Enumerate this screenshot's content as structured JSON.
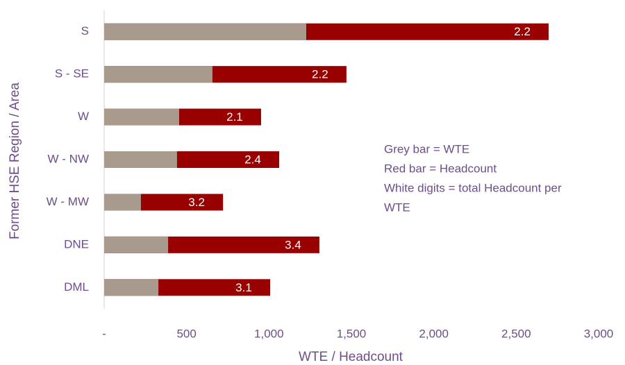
{
  "chart_data": {
    "type": "bar",
    "orientation": "horizontal",
    "overlap": true,
    "categories": [
      "S",
      "S - SE",
      "W",
      "W - NW",
      "W - MW",
      "DNE",
      "DML"
    ],
    "series": [
      {
        "name": "Headcount",
        "color": "#990000",
        "values": [
          2697,
          1470,
          952,
          1062,
          721,
          1306,
          1007
        ]
      },
      {
        "name": "WTE",
        "color": "#a89b8e",
        "values": [
          1226,
          657,
          455,
          442,
          223,
          388,
          329
        ]
      }
    ],
    "headcount_per_wte": [
      2.2,
      2.2,
      2.1,
      2.4,
      3.2,
      3.4,
      3.1
    ],
    "xlim": [
      0,
      3000
    ],
    "xticks": [
      {
        "value": 0,
        "label": "-"
      },
      500,
      {
        "value": 1000,
        "label": "1,000"
      },
      {
        "value": 1500,
        "label": "1,500"
      },
      {
        "value": 2000,
        "label": "2,000"
      },
      {
        "value": 2500,
        "label": "2,500"
      },
      {
        "value": 3000,
        "label": "3,000"
      }
    ],
    "xlabel": "WTE / Headcount",
    "ylabel": "Former HSE Region / Area",
    "annotations": [
      "Grey bar = WTE",
      "Red bar = Headcount",
      "White digits = total Headcount per",
      "WTE"
    ],
    "grid": false
  }
}
